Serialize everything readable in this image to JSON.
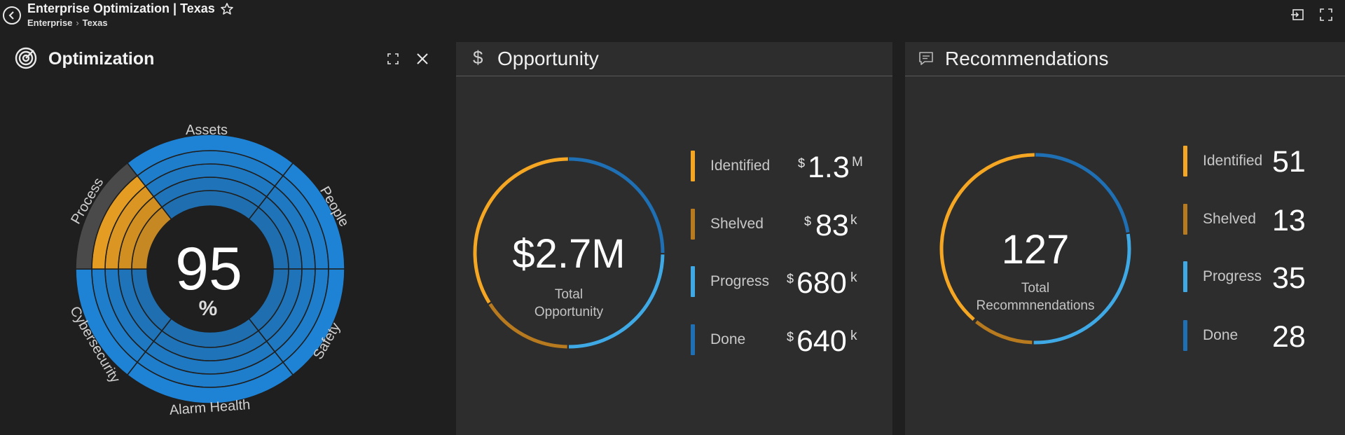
{
  "header": {
    "title": "Enterprise Optimization | Texas",
    "breadcrumb": [
      "Enterprise",
      "Texas"
    ]
  },
  "optimization": {
    "title": "Optimization",
    "score": "95",
    "score_unit": "%",
    "segments": [
      "Assets",
      "People",
      "Safety",
      "Alarm Health",
      "Cybersecurity",
      "Process"
    ]
  },
  "opportunity": {
    "title": "Opportunity",
    "total": "$2.7M",
    "total_label": [
      "Total",
      "Opportunity"
    ],
    "items": [
      {
        "label": "Identified",
        "currency": "$",
        "value": "1.3",
        "unit": "M",
        "color": "#f5a623"
      },
      {
        "label": "Shelved",
        "currency": "$",
        "value": "83",
        "unit": "k",
        "color": "#b87a1e"
      },
      {
        "label": "Progress",
        "currency": "$",
        "value": "680",
        "unit": "k",
        "color": "#3fa9e6"
      },
      {
        "label": "Done",
        "currency": "$",
        "value": "640",
        "unit": "k",
        "color": "#1e6fb3"
      }
    ]
  },
  "recommendations": {
    "title": "Recommendations",
    "total": "127",
    "total_label": [
      "Total",
      "Recommnendations"
    ],
    "items": [
      {
        "label": "Identified",
        "value": "51",
        "color": "#f5a623"
      },
      {
        "label": "Shelved",
        "value": "13",
        "color": "#b87a1e"
      },
      {
        "label": "Progress",
        "value": "35",
        "color": "#3fa9e6"
      },
      {
        "label": "Done",
        "value": "28",
        "color": "#1e6fb3"
      }
    ]
  },
  "colors": {
    "accent_orange": "#f5a623",
    "dark_orange": "#b87a1e",
    "light_blue": "#3fa9e6",
    "blue": "#1e6fb3",
    "radial_blue": "#1f86d9",
    "radial_gray": "#4a4a4a"
  },
  "icons": [
    "back-arrow-icon",
    "star-icon",
    "sign-in-icon",
    "fullscreen-icon",
    "target-icon",
    "expand-icon",
    "close-icon",
    "dollar-icon",
    "comment-icon"
  ]
}
